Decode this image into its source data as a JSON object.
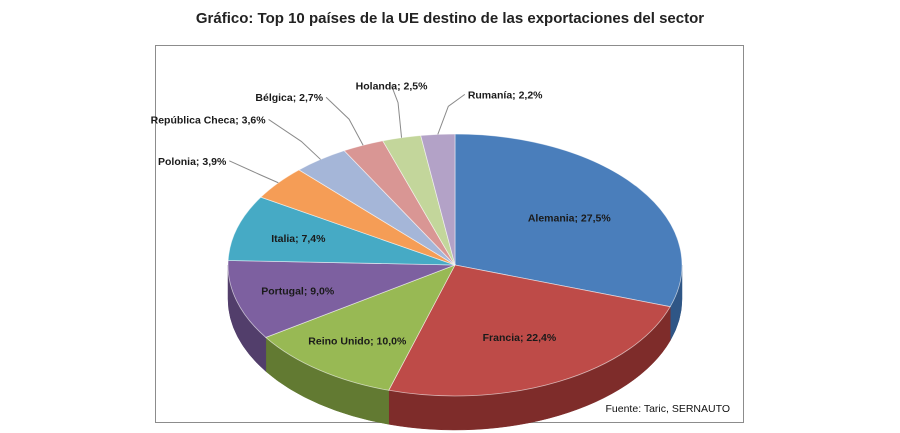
{
  "title": "Gráfico: Top 10 países de la UE destino de las exportaciones del sector",
  "source": "Fuente: Taric, SERNAUTO",
  "chart_data": {
    "type": "pie",
    "style": "3d",
    "title": "Gráfico: Top 10 países de la UE destino de las exportaciones del sector",
    "slices": [
      {
        "category": "Alemania",
        "value": 27.5,
        "label": "Alemania; 27,5%",
        "color": "#4a7ebb",
        "side": "#2f5686"
      },
      {
        "category": "Francia",
        "value": 22.4,
        "label": "Francia; 22,4%",
        "color": "#be4b48",
        "side": "#7e2c2a"
      },
      {
        "category": "Reino Unido",
        "value": 10.0,
        "label": "Reino Unido; 10,0%",
        "color": "#98b954",
        "side": "#627a32"
      },
      {
        "category": "Portugal",
        "value": 9.0,
        "label": "Portugal; 9,0%",
        "color": "#7d60a0",
        "side": "#523e6b"
      },
      {
        "category": "Italia",
        "value": 7.4,
        "label": "Italia; 7,4%",
        "color": "#46aac5",
        "side": "#2c7386"
      },
      {
        "category": "Polonia",
        "value": 3.9,
        "label": "Polonia; 3,9%",
        "color": "#f59d56",
        "side": "#b56a2c"
      },
      {
        "category": "República Checa",
        "value": 3.6,
        "label": "República Checa; 3,6%",
        "color": "#a5b6d8",
        "side": "#6f7fa2"
      },
      {
        "category": "Bélgica",
        "value": 2.7,
        "label": "Bélgica; 2,7%",
        "color": "#d99694",
        "side": "#a06361"
      },
      {
        "category": "Holanda",
        "value": 2.5,
        "label": "Holanda; 2,5%",
        "color": "#c3d69b",
        "side": "#8fa064"
      },
      {
        "category": "Rumanía",
        "value": 2.2,
        "label": "Rumanía; 2,2%",
        "color": "#b3a2c7",
        "side": "#7d6d90"
      }
    ]
  }
}
